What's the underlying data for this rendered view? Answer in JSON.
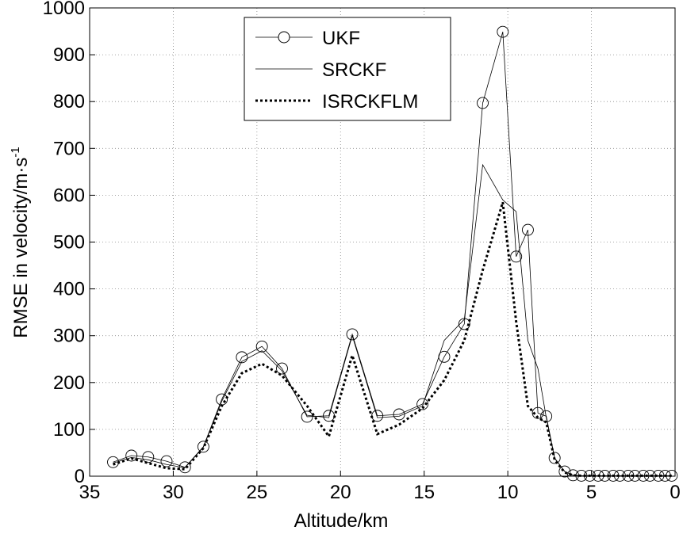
{
  "chart_data": {
    "type": "line",
    "x_label": "Altitude/km",
    "y_label": "RMSE in velocity/m·s",
    "y_label_sup": "-1",
    "xlim": [
      35,
      0
    ],
    "ylim": [
      0,
      1000
    ],
    "xticks": [
      35,
      30,
      25,
      20,
      15,
      10,
      5,
      0
    ],
    "yticks": [
      0,
      100,
      200,
      300,
      400,
      500,
      600,
      700,
      800,
      900,
      1000
    ],
    "grid": true,
    "legend": "top-center",
    "x": [
      33.6,
      32.5,
      31.5,
      30.4,
      29.3,
      28.2,
      27.1,
      25.9,
      24.7,
      23.5,
      22.0,
      20.7,
      19.3,
      17.8,
      16.5,
      15.1,
      13.8,
      12.6,
      11.5,
      10.3,
      9.5,
      8.8,
      8.2,
      7.7,
      7.2,
      6.6,
      6.1,
      5.6,
      5.1,
      4.6,
      4.2,
      3.7,
      3.3,
      2.8,
      2.4,
      1.9,
      1.5,
      1.0,
      0.6,
      0.2
    ],
    "series": [
      {
        "name": "UKF",
        "color": "#000000",
        "marker": "circle",
        "dash": "solid",
        "width": 0.8,
        "values": [
          30,
          44,
          41,
          32,
          19,
          63,
          164,
          254,
          277,
          230,
          127,
          129,
          303,
          129,
          132,
          154,
          255,
          325,
          797,
          949,
          469,
          526,
          135,
          128,
          39,
          10,
          2,
          1,
          1,
          1,
          1,
          1,
          1,
          1,
          1,
          1,
          1,
          1,
          1,
          1
        ]
      },
      {
        "name": "SRCKF",
        "color": "#000000",
        "marker": "none",
        "dash": "solid",
        "width": 0.8,
        "values": [
          28,
          40,
          35,
          25,
          18,
          62,
          160,
          245,
          268,
          225,
          130,
          125,
          300,
          125,
          128,
          150,
          290,
          335,
          665,
          590,
          565,
          290,
          230,
          125,
          38,
          10,
          2,
          1,
          1,
          1,
          1,
          1,
          1,
          1,
          1,
          1,
          1,
          1,
          1,
          1
        ]
      },
      {
        "name": "ISRCKFLM",
        "color": "#000000",
        "marker": "none",
        "dash": "dotted",
        "width": 3,
        "values": [
          25,
          38,
          28,
          17,
          15,
          60,
          150,
          220,
          240,
          215,
          150,
          85,
          258,
          90,
          110,
          145,
          205,
          290,
          440,
          585,
          330,
          150,
          125,
          115,
          35,
          8,
          2,
          1,
          1,
          1,
          1,
          1,
          1,
          1,
          1,
          1,
          1,
          1,
          1,
          1
        ]
      }
    ]
  }
}
